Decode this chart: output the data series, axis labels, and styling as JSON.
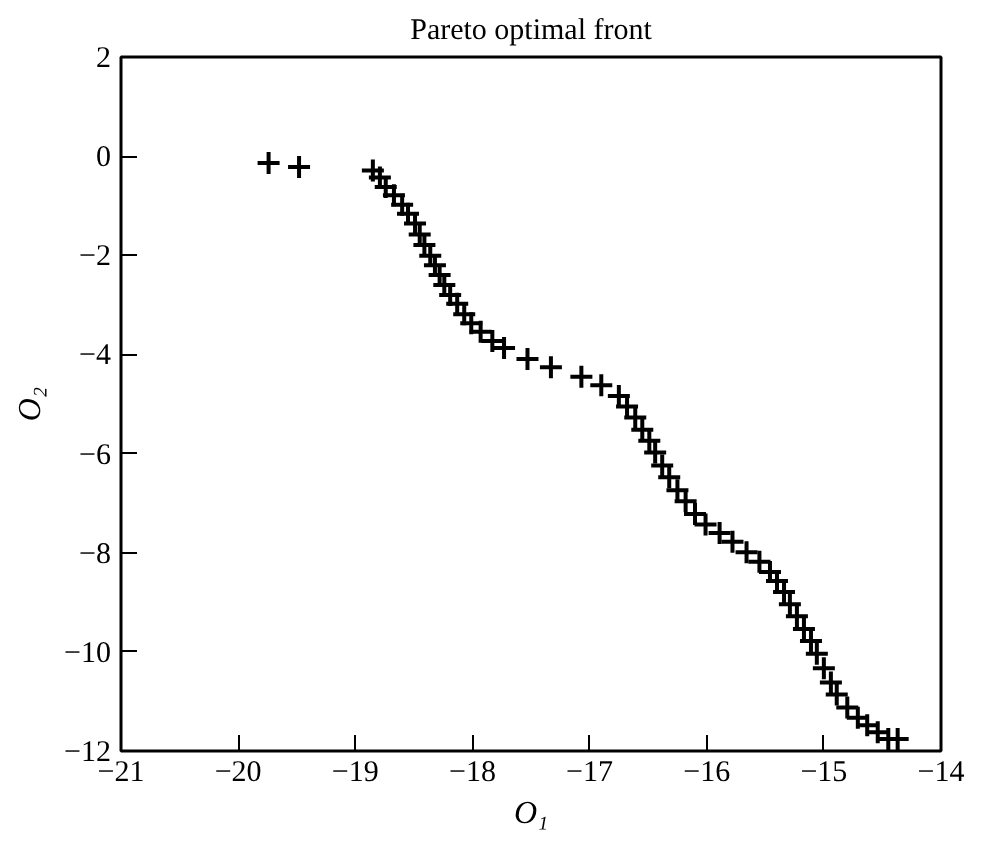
{
  "chart_data": {
    "type": "scatter",
    "title": "Pareto optimal front",
    "xlabel": "O₁",
    "ylabel": "O₂",
    "marker": "cross",
    "grid": false,
    "xlim": [
      -21,
      -14
    ],
    "xticks": [
      -21,
      -20,
      -19,
      -18,
      -17,
      -16,
      -15,
      -14
    ],
    "ylim": [
      -12,
      2
    ],
    "yticks": [
      -12,
      -10,
      -8,
      -6,
      -4,
      -2,
      0,
      2
    ],
    "series": [
      {
        "color": "#000000",
        "x": [
          -19.74,
          -19.48,
          -18.85,
          -18.79,
          -18.74,
          -18.67,
          -18.6,
          -18.55,
          -18.49,
          -18.45,
          -18.41,
          -18.36,
          -18.32,
          -18.28,
          -18.24,
          -18.19,
          -18.13,
          -18.07,
          -18.01,
          -17.93,
          -17.83,
          -17.73,
          -17.53,
          -17.33,
          -17.07,
          -16.9,
          -16.75,
          -16.68,
          -16.61,
          -16.55,
          -16.49,
          -16.44,
          -16.38,
          -16.32,
          -16.25,
          -16.18,
          -16.1,
          -16.01,
          -15.89,
          -15.78,
          -15.66,
          -15.55,
          -15.46,
          -15.4,
          -15.34,
          -15.29,
          -15.23,
          -15.17,
          -15.11,
          -15.06,
          -15.0,
          -14.94,
          -14.89,
          -14.8,
          -14.71,
          -14.63,
          -14.54,
          -14.45,
          -14.37
        ],
        "values": [
          -0.14,
          -0.22,
          -0.29,
          -0.43,
          -0.62,
          -0.79,
          -0.98,
          -1.16,
          -1.36,
          -1.58,
          -1.79,
          -2.01,
          -2.2,
          -2.4,
          -2.6,
          -2.8,
          -2.98,
          -3.19,
          -3.37,
          -3.54,
          -3.73,
          -3.87,
          -4.09,
          -4.26,
          -4.45,
          -4.62,
          -4.84,
          -5.05,
          -5.27,
          -5.52,
          -5.74,
          -5.98,
          -6.24,
          -6.48,
          -6.74,
          -6.96,
          -7.22,
          -7.43,
          -7.6,
          -7.78,
          -7.99,
          -8.18,
          -8.39,
          -8.57,
          -8.79,
          -9.04,
          -9.28,
          -9.54,
          -9.78,
          -10.04,
          -10.33,
          -10.62,
          -10.86,
          -11.12,
          -11.33,
          -11.48,
          -11.62,
          -11.76,
          -11.76
        ]
      }
    ]
  }
}
